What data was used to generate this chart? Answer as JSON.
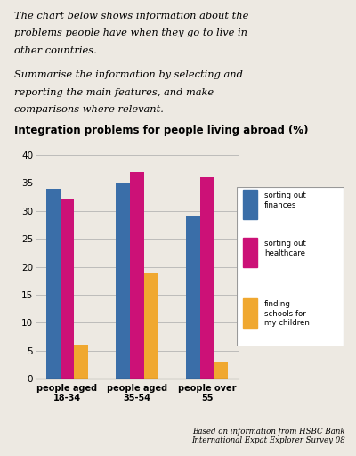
{
  "title": "Integration problems for people living abroad (%)",
  "header_line1": "The chart below shows information about the",
  "header_line2": "problems people have when they go to live in",
  "header_line3": "other countries.",
  "subheader_line1": "Summarise the information by selecting and",
  "subheader_line2": "reporting the main features, and make",
  "subheader_line3": "comparisons where relevant.",
  "footer_text": "Based on information from HSBC Bank\nInternational Expat Explorer Survey 08",
  "categories": [
    "people aged\n18-34",
    "people aged\n35-54",
    "people over\n55"
  ],
  "series": [
    {
      "label": "sorting out\nfinances",
      "color": "#3A6EA8",
      "values": [
        34,
        35,
        29
      ]
    },
    {
      "label": "sorting out\nhealthcare",
      "color": "#CC1177",
      "values": [
        32,
        37,
        36
      ]
    },
    {
      "label": "finding\nschools for\nmy children",
      "color": "#F0A830",
      "values": [
        6,
        19,
        3
      ]
    }
  ],
  "ylim": [
    0,
    40
  ],
  "yticks": [
    0,
    5,
    10,
    15,
    20,
    25,
    30,
    35,
    40
  ],
  "background_color": "#ede9e2",
  "plot_bg_color": "#ede9e2",
  "bar_width": 0.2
}
